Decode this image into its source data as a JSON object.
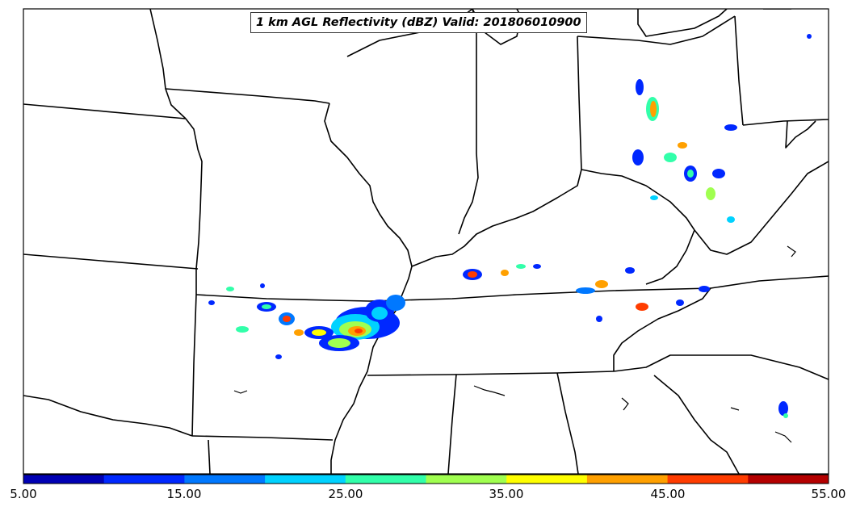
{
  "title": "1 km AGL Reflectivity (dBZ) Valid: 201806010900",
  "colorbar": {
    "labels": [
      "5.00",
      "15.00",
      "25.00",
      "35.00",
      "45.00",
      "55.00"
    ],
    "colors": [
      "#0000b4",
      "#0028ff",
      "#0078ff",
      "#00d2ff",
      "#32ffaa",
      "#a0ff50",
      "#ffff00",
      "#ffa000",
      "#ff3c00",
      "#b40000"
    ]
  }
}
